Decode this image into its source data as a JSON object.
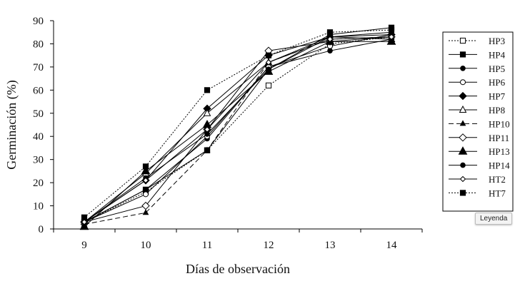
{
  "chart_data": {
    "type": "line",
    "title": "",
    "xlabel": "Días de observación",
    "ylabel": "Germinación (%)",
    "x": [
      9,
      10,
      11,
      12,
      13,
      14
    ],
    "ylim": [
      0,
      90
    ],
    "yticks": [
      0,
      10,
      20,
      30,
      40,
      50,
      60,
      70,
      80,
      90
    ],
    "grid": false,
    "legend_placement": "right",
    "series": [
      {
        "name": "HP3",
        "marker": "square-open",
        "dash": "dotted",
        "values": [
          3,
          16,
          34,
          62,
          80,
          83
        ]
      },
      {
        "name": "HP4",
        "marker": "square-filled",
        "dash": "solid",
        "values": [
          3,
          17,
          34,
          69,
          84,
          87
        ]
      },
      {
        "name": "HP5",
        "marker": "circle-filled",
        "dash": "solid",
        "values": [
          3,
          17,
          39,
          70,
          77,
          82
        ]
      },
      {
        "name": "HP6",
        "marker": "circle-open",
        "dash": "solid",
        "values": [
          3,
          15,
          40,
          70,
          79,
          84
        ]
      },
      {
        "name": "HP7",
        "marker": "diamond-filled",
        "dash": "solid",
        "values": [
          3,
          21,
          52,
          75,
          83,
          84
        ]
      },
      {
        "name": "HP8",
        "marker": "triangle-open",
        "dash": "solid",
        "values": [
          3,
          24,
          50,
          72,
          83,
          82
        ]
      },
      {
        "name": "HP10",
        "marker": "triangle-small",
        "dash": "dashed",
        "values": [
          2,
          7,
          34,
          72,
          82,
          83
        ]
      },
      {
        "name": "HP11",
        "marker": "diamond-open",
        "dash": "solid",
        "values": [
          3,
          10,
          43,
          77,
          81,
          83
        ]
      },
      {
        "name": "HP13",
        "marker": "triangle-filled",
        "dash": "solid",
        "values": [
          1,
          25,
          45,
          68,
          81,
          81
        ]
      },
      {
        "name": "HP14",
        "marker": "circle-filled",
        "dash": "solid",
        "values": [
          3,
          22,
          41,
          69,
          83,
          85
        ]
      },
      {
        "name": "HT2",
        "marker": "diamond-small",
        "dash": "solid",
        "values": [
          3,
          21,
          43,
          72,
          82,
          83
        ]
      },
      {
        "name": "HT7",
        "marker": "square-filled",
        "dash": "dotted",
        "values": [
          5,
          27,
          60,
          75,
          85,
          86
        ]
      }
    ]
  },
  "tooltip": "Leyenda"
}
